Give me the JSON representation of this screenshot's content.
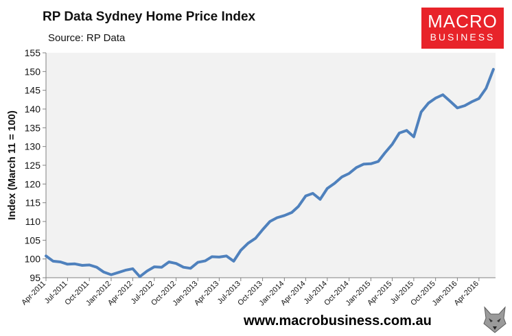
{
  "header": {
    "title": "RP Data Sydney Home Price Index",
    "subtitle": "Source: RP Data"
  },
  "logo": {
    "line1": "MACRO",
    "line2": "BUSINESS",
    "color": "#e8232a"
  },
  "footer": {
    "url": "www.macrobusiness.com.au"
  },
  "icons": {
    "brand_mark": "wolf-head-icon"
  },
  "colors": {
    "line": "#4f81bd",
    "plot_background": "#f2f2f2",
    "axis": "#808080"
  },
  "chart_data": {
    "type": "line",
    "title": "RP Data Sydney Home Price Index",
    "ylabel": "Index (March 11 = 100)",
    "xlabel": "",
    "ylim": [
      95,
      155
    ],
    "yticks": [
      95,
      100,
      105,
      110,
      115,
      120,
      125,
      130,
      135,
      140,
      145,
      150,
      155
    ],
    "xticks": [
      "Apr-2011",
      "Jul-2011",
      "Oct-2011",
      "Jan-2012",
      "Apr-2012",
      "Jul-2012",
      "Oct-2012",
      "Jan-2013",
      "Apr-2013",
      "Jul-2013",
      "Oct-2013",
      "Jan-2014",
      "Apr-2014",
      "Jul-2014",
      "Oct-2014",
      "Jan-2015",
      "Apr-2015",
      "Jul-2015",
      "Oct-2015",
      "Jan-2016",
      "Apr-2016"
    ],
    "grid": false,
    "legend": "none",
    "series": [
      {
        "x": [
          "2011-04-01",
          "2011-05-01",
          "2011-06-01",
          "2011-07-01",
          "2011-08-01",
          "2011-09-01",
          "2011-10-01",
          "2011-11-01",
          "2011-12-01",
          "2012-01-01",
          "2012-02-01",
          "2012-03-01",
          "2012-04-01",
          "2012-05-01",
          "2012-06-01",
          "2012-07-01",
          "2012-08-01",
          "2012-09-01",
          "2012-10-01",
          "2012-11-01",
          "2012-12-01",
          "2013-01-01",
          "2013-02-01",
          "2013-03-01",
          "2013-04-01",
          "2013-05-01",
          "2013-06-01",
          "2013-07-01",
          "2013-08-01",
          "2013-09-01",
          "2013-10-01",
          "2013-11-01",
          "2013-12-01",
          "2014-01-01",
          "2014-02-01",
          "2014-03-01",
          "2014-04-01",
          "2014-05-01",
          "2014-06-01",
          "2014-07-01",
          "2014-08-01",
          "2014-09-01",
          "2014-10-01",
          "2014-11-01",
          "2014-12-01",
          "2015-01-01",
          "2015-02-01",
          "2015-03-01",
          "2015-04-01",
          "2015-05-01",
          "2015-06-01",
          "2015-07-01",
          "2015-08-01",
          "2015-09-01",
          "2015-10-01",
          "2015-11-01",
          "2015-12-01",
          "2016-01-01",
          "2016-02-01",
          "2016-03-01",
          "2016-04-01",
          "2016-05-01",
          "2016-06-01"
        ],
        "values": [
          100.8,
          99.4,
          99.2,
          98.6,
          98.7,
          98.3,
          98.4,
          97.8,
          96.5,
          95.8,
          96.4,
          97.0,
          97.4,
          95.3,
          96.8,
          97.9,
          97.8,
          99.2,
          98.8,
          97.8,
          97.5,
          99.1,
          99.5,
          100.6,
          100.5,
          100.8,
          99.4,
          102.3,
          104.2,
          105.5,
          107.8,
          110.0,
          111.0,
          111.6,
          112.4,
          114.0,
          116.8,
          117.5,
          115.9,
          118.8,
          120.2,
          121.9,
          122.8,
          124.4,
          125.3,
          125.4,
          126.0,
          128.3,
          130.6,
          133.6,
          134.3,
          132.6,
          139.2,
          141.6,
          142.9,
          143.8,
          142.1,
          140.3,
          140.9,
          141.9,
          142.8,
          145.5,
          150.6
        ]
      }
    ]
  }
}
